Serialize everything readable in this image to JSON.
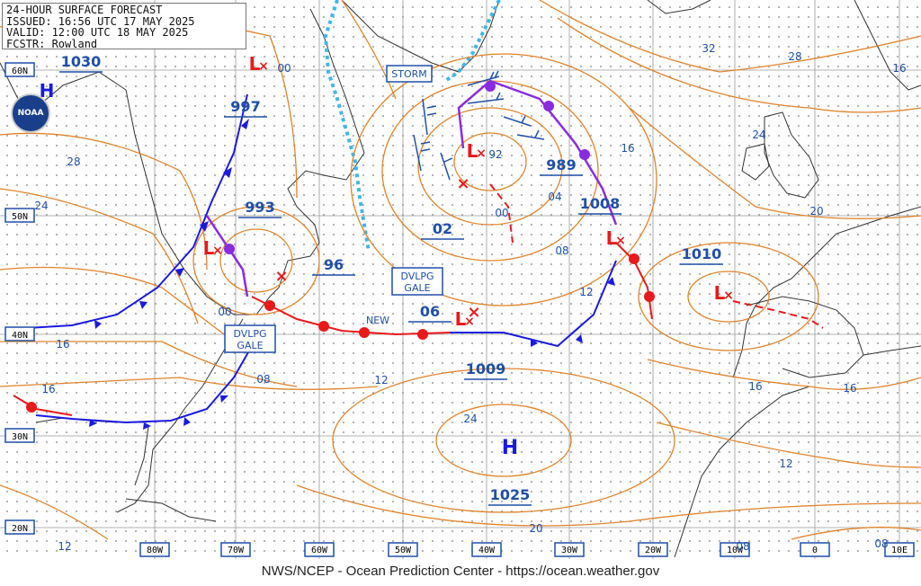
{
  "header": {
    "line1": "24-HOUR SURFACE FORECAST",
    "line2": "ISSUED: 16:56 UTC 17 MAY 2025",
    "line3": "VALID:  12:00 UTC 18 MAY 2025",
    "line4": "FCSTR:  Rowland"
  },
  "logo": {
    "text": "NOAA"
  },
  "footer": "NWS/NCEP - Ocean Prediction Center - https://ocean.weather.gov",
  "colors": {
    "isobar": "#e0832a",
    "warm_front": "#e8191a",
    "cold_front": "#1a1ae0",
    "occluded_front": "#8a2be2",
    "ice_edge": "#3fb6e8",
    "land": "#333333",
    "grid": "#9a9a9a",
    "label_blue": "#1f4fa8"
  },
  "lat_labels": [
    "60N",
    "50N",
    "40N",
    "30N",
    "20N"
  ],
  "lon_labels": [
    "80W",
    "70W",
    "60W",
    "50W",
    "40W",
    "30W",
    "20W",
    "10W",
    "0",
    "10E"
  ],
  "pressure_centers": [
    {
      "type": "L",
      "value": "997"
    },
    {
      "type": "L",
      "value": "993"
    },
    {
      "type": "L",
      "value": "989"
    },
    {
      "type": "L",
      "value": "1008"
    },
    {
      "type": "L",
      "value": "1010"
    },
    {
      "type": "L",
      "value": "1009"
    },
    {
      "type": "H",
      "value": "1025"
    },
    {
      "type": "H",
      "value": "1030"
    },
    {
      "type": "L",
      "value": "96"
    },
    {
      "type": "L",
      "value": "02"
    },
    {
      "type": "L",
      "value": "06"
    }
  ],
  "warning_boxes": [
    {
      "id": "storm",
      "line1": "STORM",
      "line2": ""
    },
    {
      "id": "dvlpg-gale-west",
      "line1": "DVLPG",
      "line2": "GALE"
    },
    {
      "id": "dvlpg-gale-central",
      "line1": "DVLPG",
      "line2": "GALE"
    }
  ],
  "new_label": "NEW",
  "isobar_labels": [
    "00",
    "28",
    "24",
    "32",
    "28",
    "24",
    "16",
    "20",
    "92",
    "04",
    "00",
    "08",
    "12",
    "16",
    "00",
    "16",
    "12",
    "08",
    "16",
    "24",
    "16",
    "12",
    "20",
    "12",
    "08",
    "08",
    "16"
  ],
  "center_symbol": "H",
  "low_symbol": "L"
}
